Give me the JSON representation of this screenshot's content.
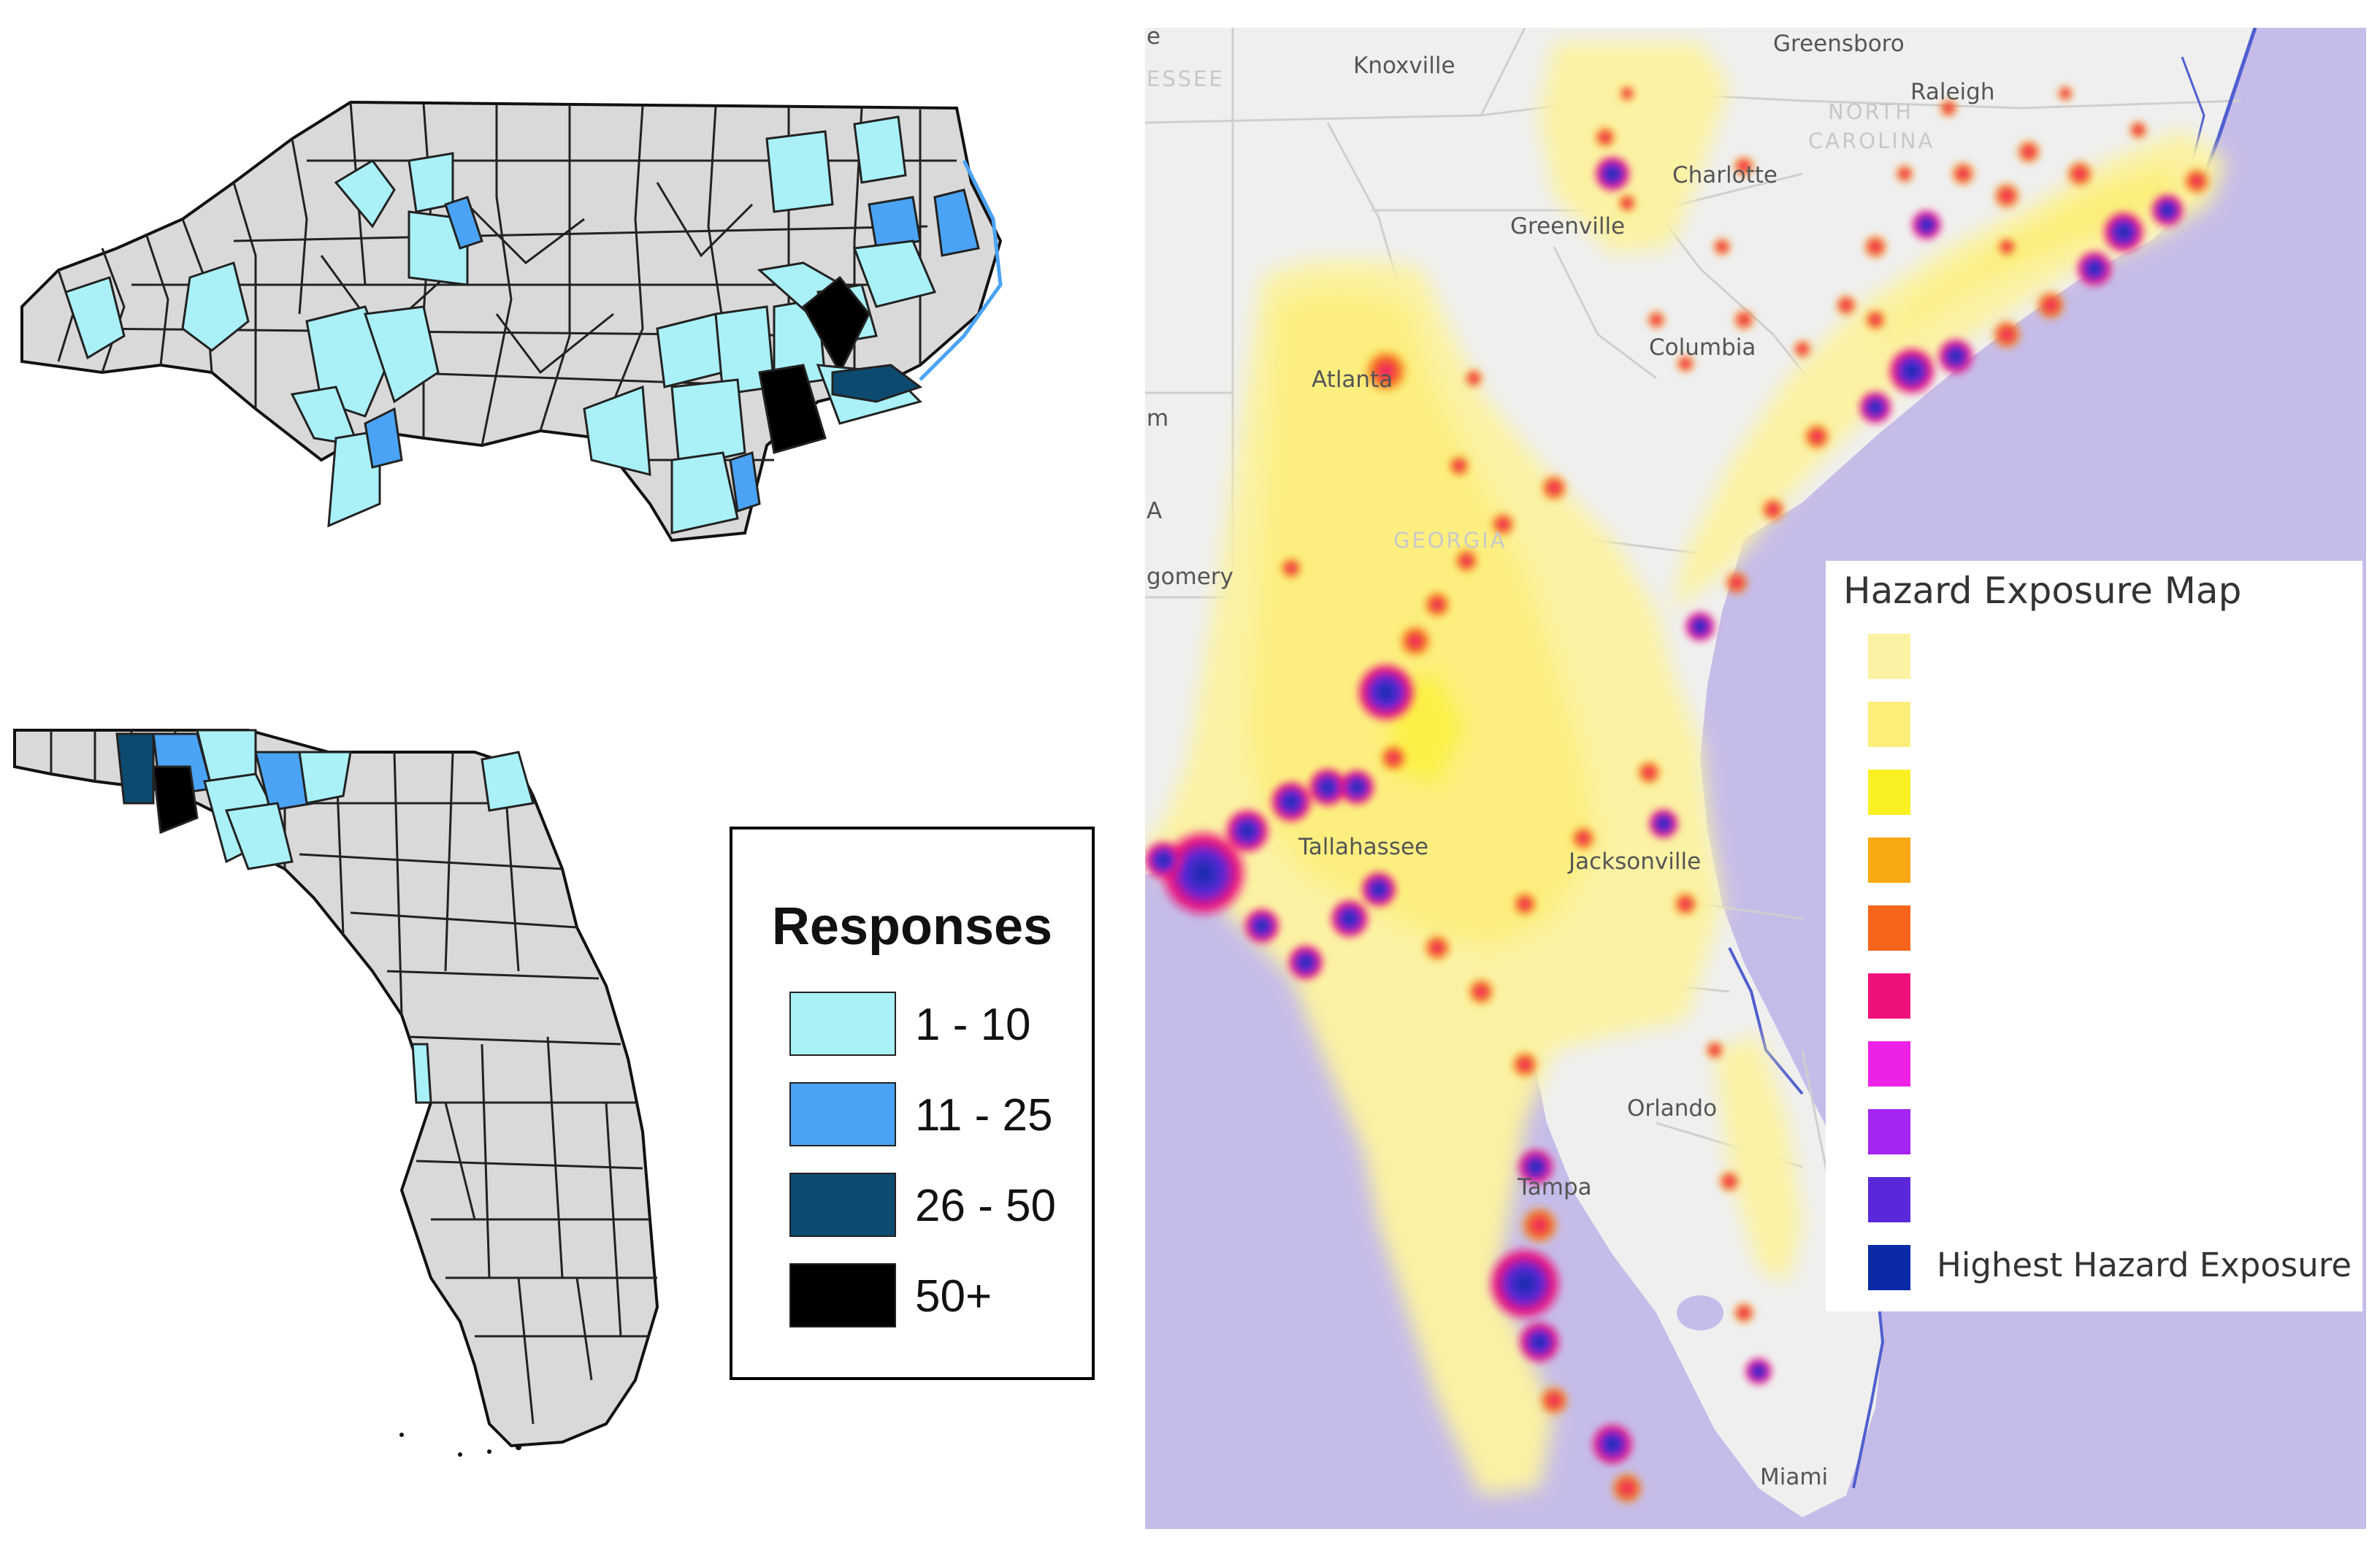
{
  "responses_legend": {
    "title": "Responses",
    "items": [
      {
        "label": "1 - 10",
        "color": "#a9f1f7"
      },
      {
        "label": "11 - 25",
        "color": "#4aa3f4"
      },
      {
        "label": "26 - 50",
        "color": "#0c4a70"
      },
      {
        "label": "50+",
        "color": "#000000"
      }
    ],
    "county_color": "#d9d9d9",
    "border_color": "#111111"
  },
  "hazard_legend": {
    "title": "Hazard Exposure Map",
    "highest_label": "Highest Hazard Exposure",
    "colors": [
      "#fbf2a3",
      "#fbef7a",
      "#fbf022",
      "#f9a912",
      "#f4641a",
      "#f0107a",
      "#ee22e6",
      "#a424f0",
      "#5a28d8",
      "#0a2aa6"
    ]
  },
  "hazard_map": {
    "water_color": "#c6bce9",
    "land_color": "#efefef",
    "city_labels": [
      {
        "name": "Knoxville"
      },
      {
        "name": "Greensboro"
      },
      {
        "name": "Raleigh"
      },
      {
        "name": "Charlotte"
      },
      {
        "name": "Greenville"
      },
      {
        "name": "Columbia"
      },
      {
        "name": "Atlanta"
      },
      {
        "name": "Tallahassee"
      },
      {
        "name": "Jacksonville"
      },
      {
        "name": "Orlando"
      },
      {
        "name": "Tampa"
      },
      {
        "name": "Miami"
      }
    ],
    "region_labels": [
      {
        "name": "NORTH"
      },
      {
        "name": "CAROLINA"
      },
      {
        "name": "GEORGIA"
      },
      {
        "name": "ESSEE"
      }
    ],
    "edge_labels": [
      {
        "name": "e"
      },
      {
        "name": "m"
      },
      {
        "name": "A"
      },
      {
        "name": "gomery"
      }
    ]
  }
}
